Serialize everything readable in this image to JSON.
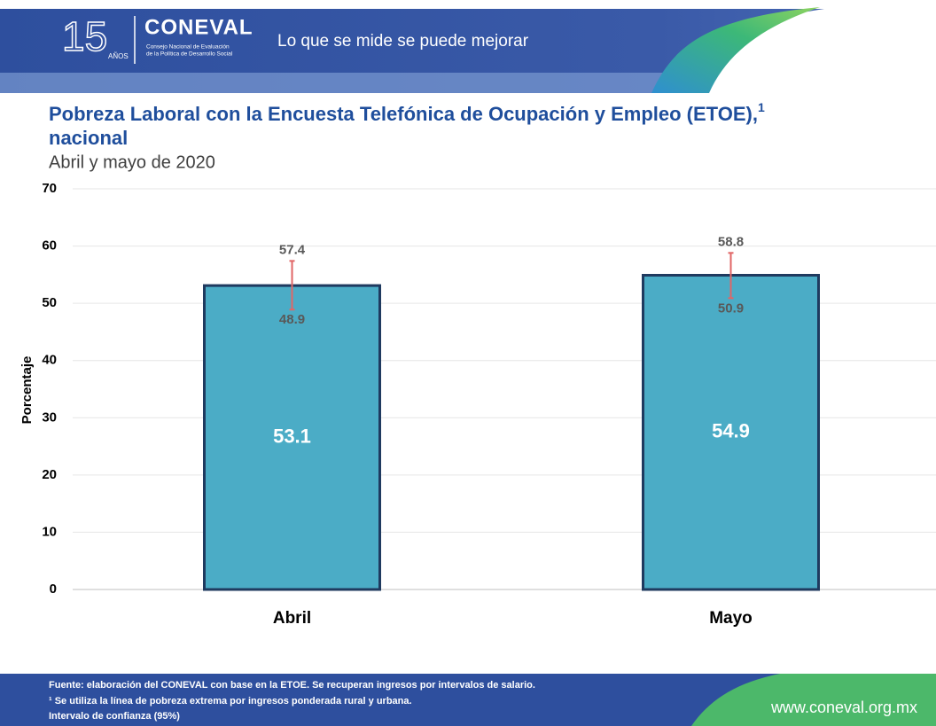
{
  "header": {
    "anniversary_number": "15",
    "anniversary_label": "AÑOS",
    "brand": "CONEVAL",
    "brand_line1": "Consejo Nacional de Evaluación",
    "brand_line2": "de la Política de Desarrollo Social",
    "tagline": "Lo que se mide se puede mejorar"
  },
  "chart_data": {
    "type": "bar",
    "title": "Pobreza Laboral con la Encuesta Telefónica de Ocupación y Empleo (ETOE),",
    "title_superscript": "1",
    "title_continuation": "nacional",
    "subtitle": "Abril y mayo de 2020",
    "y_label": "Porcentaje",
    "categories": [
      "Abril",
      "Mayo"
    ],
    "values": [
      53.1,
      54.9
    ],
    "ci_upper": [
      57.4,
      58.8
    ],
    "ci_lower": [
      48.9,
      50.9
    ],
    "color": "#4bacc6",
    "error_color": "#e06666",
    "ylim": [
      0,
      70
    ],
    "yticks": [
      0,
      10,
      20,
      30,
      40,
      50,
      60,
      70
    ],
    "grid": true
  },
  "footer": {
    "notes": [
      "Fuente: elaboración del CONEVAL con base en la ETOE. Se recuperan ingresos por intervalos de salario.",
      "¹ Se utiliza la línea de pobreza extrema por ingresos ponderada rural y urbana.",
      "Intervalo de confianza (95%)"
    ],
    "url": "www.coneval.org.mx"
  }
}
